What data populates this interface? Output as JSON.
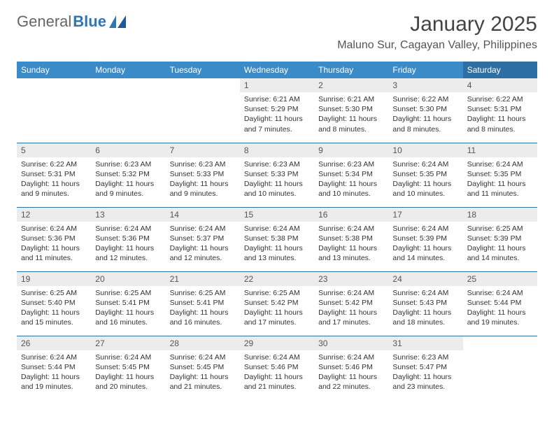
{
  "logo": {
    "text_gray": "General",
    "text_blue": "Blue"
  },
  "title": "January 2025",
  "location": "Maluno Sur, Cagayan Valley, Philippines",
  "weekdays": [
    "Sunday",
    "Monday",
    "Tuesday",
    "Wednesday",
    "Thursday",
    "Friday",
    "Saturday"
  ],
  "colors": {
    "header_bg": "#3b8bc9",
    "header_bg_sat": "#2e6fa3",
    "daynum_bg": "#ececec",
    "row_border": "#2e6fa3",
    "text": "#333333",
    "logo_blue": "#2e75b6"
  },
  "typography": {
    "month_title_fontsize_pt": 22,
    "location_fontsize_pt": 12,
    "weekday_fontsize_pt": 9,
    "daynum_fontsize_pt": 9,
    "body_fontsize_pt": 8
  },
  "layout": {
    "columns": 7,
    "rows": 5,
    "start_weekday_index": 3
  },
  "weeks": [
    [
      {
        "num": "",
        "sunrise": "",
        "sunset": "",
        "daylight": ""
      },
      {
        "num": "",
        "sunrise": "",
        "sunset": "",
        "daylight": ""
      },
      {
        "num": "",
        "sunrise": "",
        "sunset": "",
        "daylight": ""
      },
      {
        "num": "1",
        "sunrise": "6:21 AM",
        "sunset": "5:29 PM",
        "daylight": "11 hours and 7 minutes."
      },
      {
        "num": "2",
        "sunrise": "6:21 AM",
        "sunset": "5:30 PM",
        "daylight": "11 hours and 8 minutes."
      },
      {
        "num": "3",
        "sunrise": "6:22 AM",
        "sunset": "5:30 PM",
        "daylight": "11 hours and 8 minutes."
      },
      {
        "num": "4",
        "sunrise": "6:22 AM",
        "sunset": "5:31 PM",
        "daylight": "11 hours and 8 minutes."
      }
    ],
    [
      {
        "num": "5",
        "sunrise": "6:22 AM",
        "sunset": "5:31 PM",
        "daylight": "11 hours and 9 minutes."
      },
      {
        "num": "6",
        "sunrise": "6:23 AM",
        "sunset": "5:32 PM",
        "daylight": "11 hours and 9 minutes."
      },
      {
        "num": "7",
        "sunrise": "6:23 AM",
        "sunset": "5:33 PM",
        "daylight": "11 hours and 9 minutes."
      },
      {
        "num": "8",
        "sunrise": "6:23 AM",
        "sunset": "5:33 PM",
        "daylight": "11 hours and 10 minutes."
      },
      {
        "num": "9",
        "sunrise": "6:23 AM",
        "sunset": "5:34 PM",
        "daylight": "11 hours and 10 minutes."
      },
      {
        "num": "10",
        "sunrise": "6:24 AM",
        "sunset": "5:35 PM",
        "daylight": "11 hours and 10 minutes."
      },
      {
        "num": "11",
        "sunrise": "6:24 AM",
        "sunset": "5:35 PM",
        "daylight": "11 hours and 11 minutes."
      }
    ],
    [
      {
        "num": "12",
        "sunrise": "6:24 AM",
        "sunset": "5:36 PM",
        "daylight": "11 hours and 11 minutes."
      },
      {
        "num": "13",
        "sunrise": "6:24 AM",
        "sunset": "5:36 PM",
        "daylight": "11 hours and 12 minutes."
      },
      {
        "num": "14",
        "sunrise": "6:24 AM",
        "sunset": "5:37 PM",
        "daylight": "11 hours and 12 minutes."
      },
      {
        "num": "15",
        "sunrise": "6:24 AM",
        "sunset": "5:38 PM",
        "daylight": "11 hours and 13 minutes."
      },
      {
        "num": "16",
        "sunrise": "6:24 AM",
        "sunset": "5:38 PM",
        "daylight": "11 hours and 13 minutes."
      },
      {
        "num": "17",
        "sunrise": "6:24 AM",
        "sunset": "5:39 PM",
        "daylight": "11 hours and 14 minutes."
      },
      {
        "num": "18",
        "sunrise": "6:25 AM",
        "sunset": "5:39 PM",
        "daylight": "11 hours and 14 minutes."
      }
    ],
    [
      {
        "num": "19",
        "sunrise": "6:25 AM",
        "sunset": "5:40 PM",
        "daylight": "11 hours and 15 minutes."
      },
      {
        "num": "20",
        "sunrise": "6:25 AM",
        "sunset": "5:41 PM",
        "daylight": "11 hours and 16 minutes."
      },
      {
        "num": "21",
        "sunrise": "6:25 AM",
        "sunset": "5:41 PM",
        "daylight": "11 hours and 16 minutes."
      },
      {
        "num": "22",
        "sunrise": "6:25 AM",
        "sunset": "5:42 PM",
        "daylight": "11 hours and 17 minutes."
      },
      {
        "num": "23",
        "sunrise": "6:24 AM",
        "sunset": "5:42 PM",
        "daylight": "11 hours and 17 minutes."
      },
      {
        "num": "24",
        "sunrise": "6:24 AM",
        "sunset": "5:43 PM",
        "daylight": "11 hours and 18 minutes."
      },
      {
        "num": "25",
        "sunrise": "6:24 AM",
        "sunset": "5:44 PM",
        "daylight": "11 hours and 19 minutes."
      }
    ],
    [
      {
        "num": "26",
        "sunrise": "6:24 AM",
        "sunset": "5:44 PM",
        "daylight": "11 hours and 19 minutes."
      },
      {
        "num": "27",
        "sunrise": "6:24 AM",
        "sunset": "5:45 PM",
        "daylight": "11 hours and 20 minutes."
      },
      {
        "num": "28",
        "sunrise": "6:24 AM",
        "sunset": "5:45 PM",
        "daylight": "11 hours and 21 minutes."
      },
      {
        "num": "29",
        "sunrise": "6:24 AM",
        "sunset": "5:46 PM",
        "daylight": "11 hours and 21 minutes."
      },
      {
        "num": "30",
        "sunrise": "6:24 AM",
        "sunset": "5:46 PM",
        "daylight": "11 hours and 22 minutes."
      },
      {
        "num": "31",
        "sunrise": "6:23 AM",
        "sunset": "5:47 PM",
        "daylight": "11 hours and 23 minutes."
      },
      {
        "num": "",
        "sunrise": "",
        "sunset": "",
        "daylight": ""
      }
    ]
  ]
}
